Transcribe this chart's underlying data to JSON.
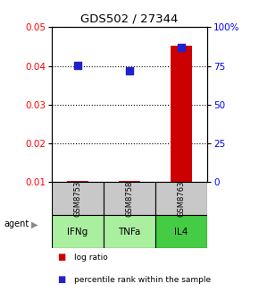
{
  "title": "GDS502 / 27344",
  "samples": [
    "GSM8753",
    "GSM8758",
    "GSM8763"
  ],
  "agents": [
    "IFNg",
    "TNFa",
    "IL4"
  ],
  "log_ratio": [
    0.0103,
    0.0104,
    0.0453
  ],
  "percentile_rank": [
    75.5,
    72.0,
    87.0
  ],
  "ylim_left": [
    0.01,
    0.05
  ],
  "ylim_right": [
    0,
    100
  ],
  "yticks_left": [
    0.01,
    0.02,
    0.03,
    0.04,
    0.05
  ],
  "yticks_right": [
    0,
    25,
    50,
    75,
    100
  ],
  "ytick_labels_right": [
    "0",
    "25",
    "50",
    "75",
    "100%"
  ],
  "bar_color": "#cc0000",
  "dot_color": "#2222cc",
  "sample_bg": "#c8c8c8",
  "agent_bg_light": "#aaeea0",
  "agent_bg_dark": "#44cc44",
  "bar_width": 0.4,
  "dot_size": 28,
  "x_positions": [
    0,
    1,
    2
  ]
}
